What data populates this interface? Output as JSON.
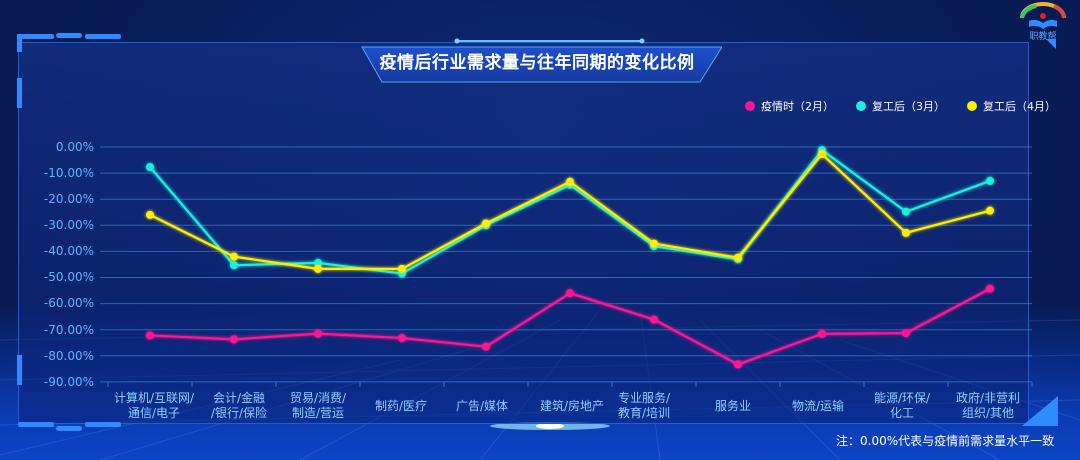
{
  "logo": {
    "text": "职教帮"
  },
  "title": "疫情后行业需求量与往年同期的变化比例",
  "legend": [
    {
      "label": "疫情时（2月）",
      "color": "#ff1493"
    },
    {
      "label": "复工后（3月）",
      "color": "#19f0e0"
    },
    {
      "label": "复工后（4月）",
      "color": "#ffee00"
    }
  ],
  "note": "注：0.00%代表与疫情前需求量水平一致",
  "chart_data": {
    "type": "line",
    "title": "疫情后行业需求量与往年同期的变化比例",
    "xlabel": "",
    "ylabel": "",
    "ylim": [
      -90,
      0
    ],
    "y_ticks": [
      "0.00%",
      "-10.00%",
      "-20.00%",
      "-30.00%",
      "-40.00%",
      "-50.00%",
      "-60.00%",
      "-70.00%",
      "-80.00%",
      "-90.00%"
    ],
    "grid": true,
    "legend_position": "top-right",
    "categories": [
      "计算机/互联网/\n通信/电子",
      "会计/金融\n/银行/保险",
      "贸易/消费/\n制造/营运",
      "制药/医疗",
      "广告/媒体",
      "建筑/房地产",
      "专业服务/\n教育/培训",
      "服务业",
      "物流/运输",
      "能源/环保/\n化工",
      "政府/非营利\n组织/其他"
    ],
    "series": [
      {
        "name": "疫情时（2月）",
        "color": "#ff1493",
        "values": [
          -72.2,
          -73.7,
          -71.5,
          -73.2,
          -76.5,
          -56.0,
          -66.1,
          -83.3,
          -71.6,
          -71.3,
          -54.3
        ]
      },
      {
        "name": "复工后（3月）",
        "color": "#19f0e0",
        "values": [
          -7.7,
          -45.3,
          -44.4,
          -48.5,
          -30.0,
          -14.5,
          -38.0,
          -43.0,
          -1.2,
          -24.8,
          -13.0
        ]
      },
      {
        "name": "复工后（4月）",
        "color": "#ffee00",
        "values": [
          -26.0,
          -42.0,
          -46.7,
          -46.7,
          -29.3,
          -13.3,
          -37.0,
          -42.4,
          -2.7,
          -32.9,
          -24.4
        ]
      }
    ]
  }
}
